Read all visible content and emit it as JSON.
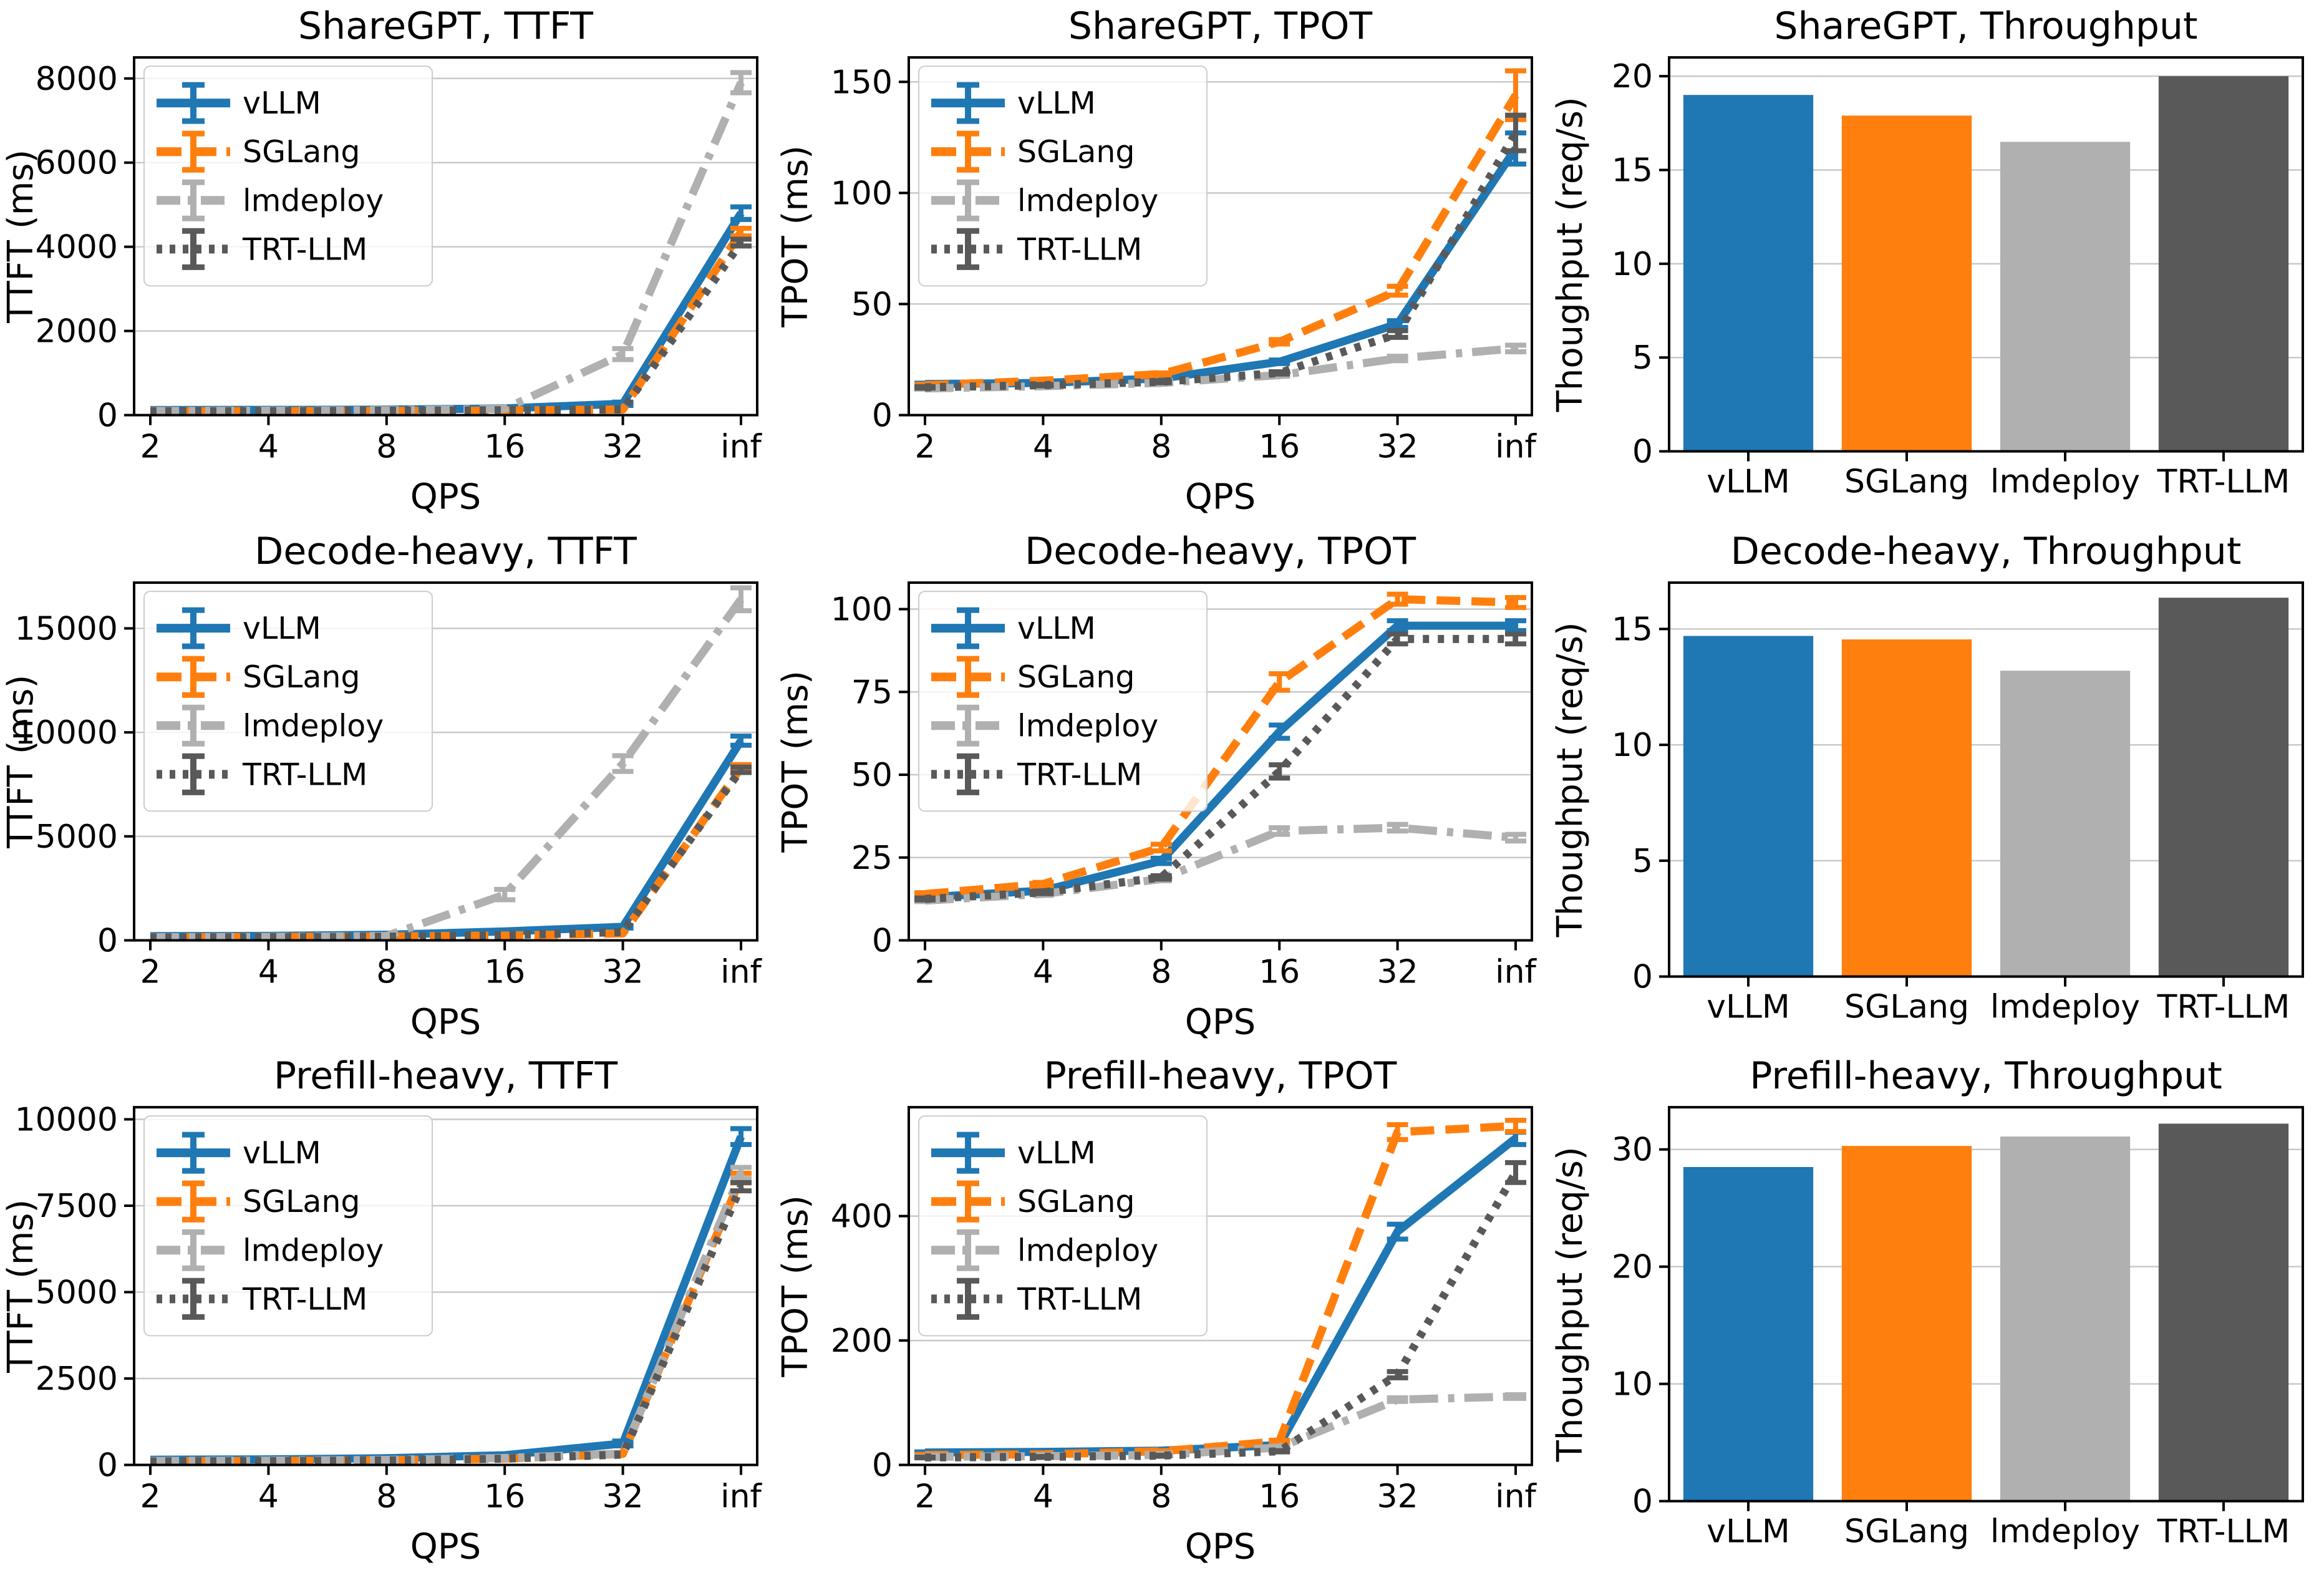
{
  "figure": {
    "background": "#ffffff",
    "grid_color": "#c9c9c9",
    "spine_color": "#000000",
    "series_colors": {
      "vLLM": "#1f77b4",
      "SGLang": "#ff7f0e",
      "lmdeploy": "#b0b0b0",
      "TRT-LLM": "#595959"
    },
    "linestyles": {
      "vLLM": "solid",
      "SGLang": "dashed",
      "lmdeploy": "dashdot",
      "TRT-LLM": "dotted"
    }
  },
  "chart_data": [
    {
      "id": "sharegpt-ttft",
      "type": "line",
      "title": "ShareGPT, TTFT",
      "xlabel": "QPS",
      "ylabel": "TTFT (ms)",
      "x_ticklabels": [
        "2",
        "4",
        "8",
        "16",
        "32",
        "inf"
      ],
      "yticks": [
        0,
        2000,
        4000,
        6000,
        8000
      ],
      "ylim": [
        0,
        8500
      ],
      "legend": true,
      "series": [
        {
          "name": "vLLM",
          "values": [
            120,
            125,
            130,
            160,
            270,
            4800
          ],
          "errors": [
            0,
            0,
            0,
            0,
            40,
            150
          ]
        },
        {
          "name": "SGLang",
          "values": [
            95,
            95,
            100,
            110,
            135,
            4350
          ],
          "errors": [
            0,
            0,
            0,
            0,
            0,
            90
          ]
        },
        {
          "name": "lmdeploy",
          "values": [
            100,
            105,
            115,
            150,
            1450,
            7900
          ],
          "errors": [
            0,
            0,
            0,
            0,
            130,
            240
          ]
        },
        {
          "name": "TRT-LLM",
          "values": [
            90,
            95,
            105,
            115,
            135,
            4100
          ],
          "errors": [
            0,
            0,
            0,
            0,
            0,
            80
          ]
        }
      ]
    },
    {
      "id": "sharegpt-tpot",
      "type": "line",
      "title": "ShareGPT, TPOT",
      "xlabel": "QPS",
      "ylabel": "TPOT (ms)",
      "x_ticklabels": [
        "2",
        "4",
        "8",
        "16",
        "32",
        "inf"
      ],
      "yticks": [
        0,
        50,
        100,
        150
      ],
      "ylim": [
        0,
        161
      ],
      "legend": true,
      "series": [
        {
          "name": "vLLM",
          "values": [
            14,
            14.5,
            16.5,
            24,
            41,
            120
          ],
          "errors": [
            0.4,
            0.4,
            0.5,
            0.8,
            1.5,
            7
          ]
        },
        {
          "name": "SGLang",
          "values": [
            13.5,
            15.5,
            18.5,
            33,
            56,
            144
          ],
          "errors": [
            0.4,
            0.4,
            0.5,
            1,
            2,
            11
          ]
        },
        {
          "name": "lmdeploy",
          "values": [
            12,
            13,
            14.5,
            18,
            25.5,
            30
          ],
          "errors": [
            0.3,
            0.3,
            0.4,
            0.5,
            1,
            1.5
          ]
        },
        {
          "name": "TRT-LLM",
          "values": [
            12.5,
            13.5,
            15,
            19,
            36.5,
            127
          ],
          "errors": [
            0.3,
            0.3,
            0.4,
            0.5,
            1.5,
            8
          ]
        }
      ]
    },
    {
      "id": "sharegpt-throughput",
      "type": "bar",
      "title": "ShareGPT, Throughput",
      "ylabel": "Thoughput (req/s)",
      "categories": [
        "vLLM",
        "SGLang",
        "lmdeploy",
        "TRT-LLM"
      ],
      "values": [
        19.0,
        17.9,
        16.5,
        20.0
      ],
      "yticks": [
        0,
        5,
        10,
        15,
        20
      ],
      "ylim": [
        0,
        21
      ]
    },
    {
      "id": "decode-heavy-ttft",
      "type": "line",
      "title": "Decode-heavy, TTFT",
      "xlabel": "QPS",
      "ylabel": "TTFT (ms)",
      "x_ticklabels": [
        "2",
        "4",
        "8",
        "16",
        "32",
        "inf"
      ],
      "yticks": [
        0,
        5000,
        10000,
        15000
      ],
      "ylim": [
        0,
        17200
      ],
      "legend": true,
      "series": [
        {
          "name": "vLLM",
          "values": [
            200,
            215,
            270,
            430,
            650,
            9600
          ],
          "errors": [
            0,
            0,
            0,
            0,
            60,
            220
          ]
        },
        {
          "name": "SGLang",
          "values": [
            150,
            160,
            190,
            230,
            330,
            8300
          ],
          "errors": [
            0,
            0,
            0,
            0,
            0,
            150
          ]
        },
        {
          "name": "lmdeploy",
          "values": [
            150,
            165,
            210,
            2200,
            8500,
            16400
          ],
          "errors": [
            0,
            0,
            0,
            250,
            380,
            550
          ]
        },
        {
          "name": "TRT-LLM",
          "values": [
            140,
            150,
            175,
            250,
            400,
            8200
          ],
          "errors": [
            0,
            0,
            0,
            0,
            0,
            130
          ]
        }
      ]
    },
    {
      "id": "decode-heavy-tpot",
      "type": "line",
      "title": "Decode-heavy, TPOT",
      "xlabel": "QPS",
      "ylabel": "TPOT (ms)",
      "x_ticklabels": [
        "2",
        "4",
        "8",
        "16",
        "32",
        "inf"
      ],
      "yticks": [
        0,
        25,
        50,
        75,
        100
      ],
      "ylim": [
        0,
        108
      ],
      "legend": true,
      "series": [
        {
          "name": "vLLM",
          "values": [
            13,
            15,
            24,
            63,
            95,
            95
          ],
          "errors": [
            0.4,
            0.4,
            0.8,
            2,
            1.5,
            1.5
          ]
        },
        {
          "name": "SGLang",
          "values": [
            14,
            17,
            28,
            78,
            103,
            102
          ],
          "errors": [
            0.4,
            0.5,
            1,
            2.5,
            1.5,
            1.5
          ]
        },
        {
          "name": "lmdeploy",
          "values": [
            12,
            14,
            18.5,
            33,
            34,
            31
          ],
          "errors": [
            0.3,
            0.4,
            0.5,
            1,
            1,
            1
          ]
        },
        {
          "name": "TRT-LLM",
          "values": [
            12.5,
            14.5,
            19,
            51,
            91,
            91
          ],
          "errors": [
            0.3,
            0.4,
            0.5,
            2,
            1.5,
            1.5
          ]
        }
      ]
    },
    {
      "id": "decode-heavy-throughput",
      "type": "bar",
      "title": "Decode-heavy, Throughput",
      "ylabel": "Thoughput (req/s)",
      "categories": [
        "vLLM",
        "SGLang",
        "lmdeploy",
        "TRT-LLM"
      ],
      "values": [
        14.7,
        14.55,
        13.2,
        16.35
      ],
      "yticks": [
        0,
        5,
        10,
        15
      ],
      "ylim": [
        0,
        17
      ],
      "legend": false
    },
    {
      "id": "prefill-heavy-ttft",
      "type": "line",
      "title": "Prefill-heavy, TTFT",
      "xlabel": "QPS",
      "ylabel": "TTFT (ms)",
      "x_ticklabels": [
        "2",
        "4",
        "8",
        "16",
        "32",
        "inf"
      ],
      "yticks": [
        0,
        2500,
        5000,
        7500,
        10000
      ],
      "ylim": [
        0,
        10350
      ],
      "legend": true,
      "series": [
        {
          "name": "vLLM",
          "values": [
            150,
            160,
            195,
            280,
            620,
            9500
          ],
          "errors": [
            0,
            0,
            0,
            0,
            70,
            230
          ]
        },
        {
          "name": "SGLang",
          "values": [
            105,
            115,
            135,
            185,
            320,
            8300
          ],
          "errors": [
            0,
            0,
            0,
            0,
            0,
            140
          ]
        },
        {
          "name": "lmdeploy",
          "values": [
            115,
            125,
            145,
            200,
            330,
            8450
          ],
          "errors": [
            0,
            0,
            0,
            0,
            0,
            160
          ]
        },
        {
          "name": "TRT-LLM",
          "values": [
            100,
            110,
            130,
            180,
            300,
            8050
          ],
          "errors": [
            0,
            0,
            0,
            0,
            0,
            120
          ]
        }
      ]
    },
    {
      "id": "prefill-heavy-tpot",
      "type": "line",
      "title": "Prefill-heavy, TPOT",
      "xlabel": "QPS",
      "ylabel": "TPOT (ms)",
      "x_ticklabels": [
        "2",
        "4",
        "8",
        "16",
        "32",
        "inf"
      ],
      "yticks": [
        0,
        200,
        400
      ],
      "ylim": [
        0,
        575
      ],
      "legend": true,
      "series": [
        {
          "name": "vLLM",
          "values": [
            20,
            21,
            23,
            32,
            375,
            525
          ],
          "errors": [
            1,
            1,
            1,
            1.5,
            12,
            10
          ]
        },
        {
          "name": "SGLang",
          "values": [
            16,
            17,
            22,
            38,
            535,
            545
          ],
          "errors": [
            1,
            1,
            1,
            1.5,
            12,
            9
          ]
        },
        {
          "name": "lmdeploy",
          "values": [
            13,
            14,
            16,
            28,
            105,
            110
          ],
          "errors": [
            0.5,
            0.5,
            0.5,
            1,
            3,
            3
          ]
        },
        {
          "name": "TRT-LLM",
          "values": [
            12,
            13,
            15,
            22,
            145,
            470
          ],
          "errors": [
            0.5,
            0.5,
            0.5,
            1,
            5,
            16
          ]
        }
      ]
    },
    {
      "id": "prefill-heavy-throughput",
      "type": "bar",
      "title": "Prefill-heavy, Throughput",
      "ylabel": "Thoughput (req/s)",
      "categories": [
        "vLLM",
        "SGLang",
        "lmdeploy",
        "TRT-LLM"
      ],
      "values": [
        28.5,
        30.3,
        31.1,
        32.2
      ],
      "yticks": [
        0,
        10,
        20,
        30
      ],
      "ylim": [
        0,
        33.6
      ]
    }
  ]
}
